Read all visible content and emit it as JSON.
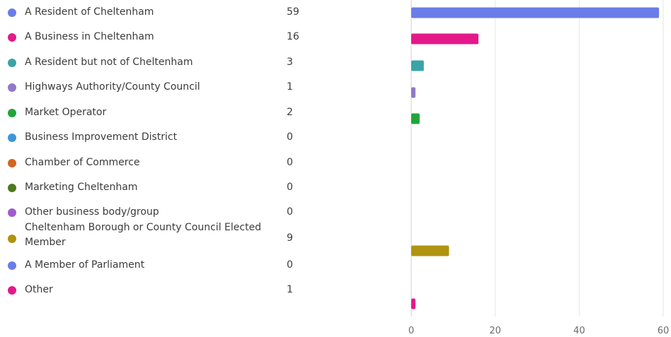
{
  "chart_data": {
    "type": "bar",
    "orientation": "horizontal",
    "categories": [
      "A Resident of Cheltenham",
      "A Business in Cheltenham",
      "A Resident but not of Cheltenham",
      "Highways Authority/County Council",
      "Market Operator",
      "Business Improvement District",
      "Chamber of Commerce",
      "Marketing Cheltenham",
      "Other business body/group",
      "Cheltenham Borough or County Council Elected Member",
      "A Member of Parliament",
      "Other"
    ],
    "values": [
      59,
      16,
      3,
      1,
      2,
      0,
      0,
      0,
      0,
      9,
      0,
      1
    ],
    "colors": [
      "#6a7de8",
      "#e3198a",
      "#3aa3a8",
      "#9178c9",
      "#21a63a",
      "#3e96d8",
      "#d2651f",
      "#4d7a1f",
      "#a35ad1",
      "#b0930f",
      "#6a7de8",
      "#e3198a"
    ],
    "xlim": [
      0,
      60
    ],
    "xticks": [
      0,
      20,
      40,
      60
    ],
    "grid": true,
    "legend": "left"
  }
}
